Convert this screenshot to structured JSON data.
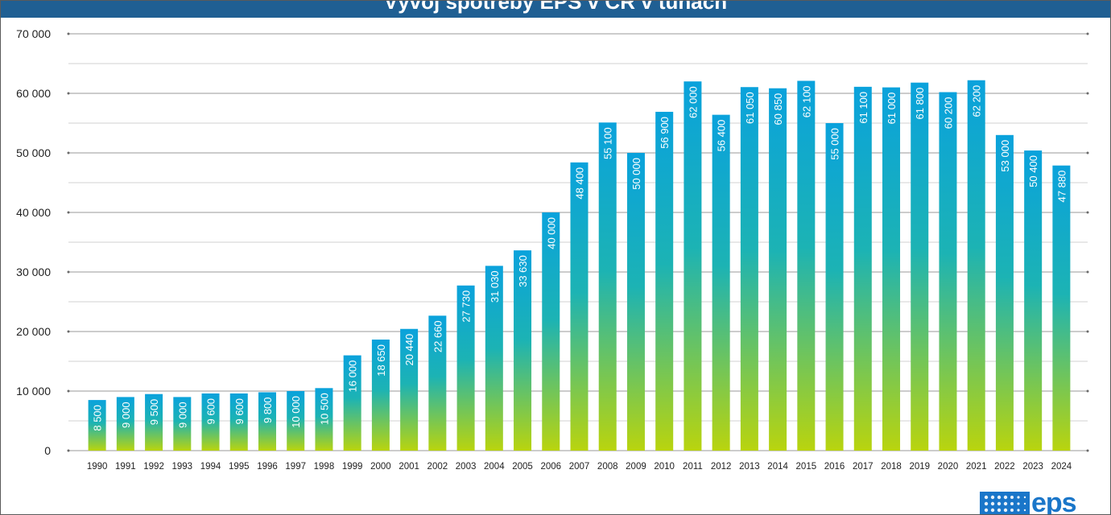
{
  "chart_data": {
    "type": "bar",
    "title": "Vývoj spotřeby EPS v ČR v tunách",
    "categories": [
      "1990",
      "1991",
      "1992",
      "1993",
      "1994",
      "1995",
      "1996",
      "1997",
      "1998",
      "1999",
      "2000",
      "2001",
      "2002",
      "2003",
      "2004",
      "2005",
      "2006",
      "2007",
      "2008",
      "2009",
      "2010",
      "2011",
      "2012",
      "2013",
      "2014",
      "2015",
      "2016",
      "2017",
      "2018",
      "2019",
      "2020",
      "2021",
      "2022",
      "2023",
      "2024"
    ],
    "values": [
      8500,
      9000,
      9500,
      9000,
      9600,
      9600,
      9800,
      10000,
      10500,
      16000,
      18650,
      20440,
      22660,
      27730,
      31030,
      33630,
      40000,
      48400,
      55100,
      50000,
      56900,
      62000,
      56400,
      61050,
      60850,
      62100,
      55000,
      61100,
      61000,
      61800,
      60200,
      62200,
      53000,
      50400,
      47880
    ],
    "value_labels": [
      "8 500",
      "9 000",
      "9 500",
      "9 000",
      "9 600",
      "9 600",
      "9 800",
      "10 000",
      "10 500",
      "16 000",
      "18 650",
      "20 440",
      "22 660",
      "27 730",
      "31 030",
      "33 630",
      "40 000",
      "48 400",
      "55 100",
      "50 000",
      "56 900",
      "62 000",
      "56 400",
      "61 050",
      "60 850",
      "62 100",
      "55 000",
      "61 100",
      "61 000",
      "61 800",
      "60 200",
      "62 200",
      "53 000",
      "50 400",
      "47 880"
    ],
    "yticks": [
      0,
      10000,
      20000,
      30000,
      40000,
      50000,
      60000,
      70000
    ],
    "ytick_labels": [
      "0",
      "10 000",
      "20 000",
      "30 000",
      "40 000",
      "50 000",
      "60 000",
      "70  000"
    ],
    "ylim": [
      0,
      70000
    ],
    "minor_gridlines_every": 5000,
    "xlabel": "",
    "ylabel": "",
    "legend": "none",
    "colors": {
      "title_bar": "#1f5f93",
      "bar_top": "#0aa2dc",
      "bar_mid": "#1cb3b4",
      "bar_bottom": "#b9d40e",
      "grid": "#9a9a9a",
      "minor_grid": "#d0d0d0",
      "label": "#ffffff"
    }
  },
  "logo": {
    "text": "eps"
  }
}
